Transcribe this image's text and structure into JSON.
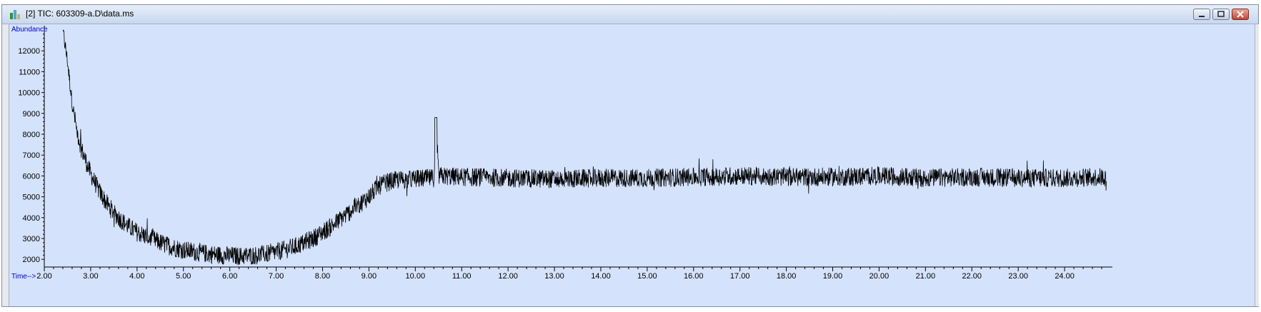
{
  "window": {
    "title": "[2] TIC: 603309-a.D\\data.ms",
    "buttons": {
      "minimize": "minimize-icon",
      "maximize": "maximize-icon",
      "close": "close-icon"
    }
  },
  "colors": {
    "plot_background": "#d4e2fb",
    "axis_label": "#0000cc",
    "trace": "#000000"
  },
  "chart_data": {
    "type": "line",
    "ylabel": "Abundance",
    "xlabel": "Time-->",
    "xlim": [
      2.0,
      25.0
    ],
    "ylim": [
      1700,
      13000
    ],
    "x_ticks": [
      "2.00",
      "3.00",
      "4.00",
      "5.00",
      "6.00",
      "7.00",
      "8.00",
      "9.00",
      "10.00",
      "11.00",
      "12.00",
      "13.00",
      "14.00",
      "15.00",
      "16.00",
      "17.00",
      "18.00",
      "19.00",
      "20.00",
      "21.00",
      "22.00",
      "23.00",
      "24.00"
    ],
    "y_ticks": [
      "2000",
      "3000",
      "4000",
      "5000",
      "6000",
      "7000",
      "8000",
      "9000",
      "10000",
      "11000",
      "12000"
    ],
    "grid": false,
    "series": [
      {
        "x": [
          2.4,
          2.5,
          2.6,
          2.7,
          2.8,
          2.9,
          3.0,
          3.2,
          3.4,
          3.6,
          3.8,
          4.0,
          4.3,
          4.6,
          5.0,
          5.4,
          5.8,
          6.2,
          6.6,
          7.0,
          7.4,
          7.8,
          8.2,
          8.6,
          9.0,
          9.2,
          9.4,
          9.6,
          10.0,
          10.4,
          10.45,
          10.5,
          11.0,
          12.0,
          13.0,
          14.0,
          15.0,
          16.0,
          17.0,
          18.0,
          19.0,
          20.0,
          21.0,
          22.0,
          23.0,
          24.0,
          24.9
        ],
        "y": [
          13000,
          11500,
          9500,
          8200,
          7300,
          6700,
          6100,
          5200,
          4500,
          4000,
          3600,
          3300,
          3000,
          2700,
          2450,
          2300,
          2200,
          2150,
          2200,
          2350,
          2600,
          3000,
          3600,
          4300,
          5000,
          5500,
          5700,
          5800,
          5850,
          5900,
          8900,
          6000,
          5950,
          5900,
          5850,
          5900,
          5900,
          5950,
          6000,
          5950,
          5950,
          6000,
          5900,
          5950,
          5900,
          5900,
          5950
        ],
        "noise_amplitude": 450
      }
    ]
  }
}
